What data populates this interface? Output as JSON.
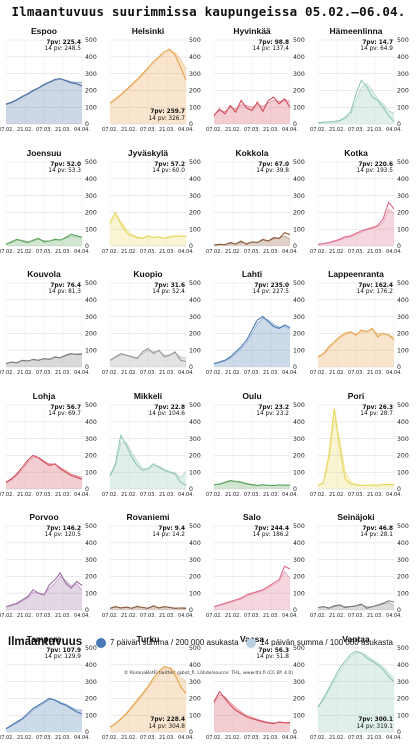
{
  "title": "Ilmaantuvuus suurimmissa kaupungeissa 05.02.–06.04.",
  "legend": {
    "title": "Ilmaantuvuus",
    "item7": "7 päivän summa / 200 000 asukasta",
    "item14": "14 päivän summa / 100 000 asukasta"
  },
  "credit": "© KoronaBotFI twitter: @bot_fi. Lähde/source: THL, www.thl.fi (CC BY 4.0)",
  "chart_data": {
    "type": "area",
    "x_ticks": [
      "07.02.",
      "21.02.",
      "07.03.",
      "21.03.",
      "04.04."
    ],
    "y_ticks": [
      0,
      100,
      200,
      300,
      400,
      500
    ],
    "ylim": [
      0,
      500
    ],
    "grid": true,
    "cities": [
      {
        "name": "Espoo",
        "color": "#4a6fa5",
        "s7": "7pv: 225.4",
        "s14": "14 pv: 248.5",
        "label_pos": "top",
        "v7": [
          118,
          130,
          145,
          165,
          180,
          200,
          215,
          235,
          250,
          265,
          270,
          258,
          245,
          240,
          225
        ],
        "v14": [
          115,
          125,
          140,
          160,
          175,
          195,
          212,
          230,
          245,
          260,
          268,
          262,
          252,
          248,
          248
        ]
      },
      {
        "name": "Helsinki",
        "color": "#e8a24a",
        "s7": "7pv: 259.7",
        "s14": "14 pv: 326.7",
        "label_pos": "bottom",
        "v7": [
          125,
          150,
          175,
          205,
          235,
          265,
          300,
          335,
          370,
          400,
          430,
          445,
          410,
          340,
          260
        ],
        "v14": [
          120,
          142,
          168,
          198,
          228,
          258,
          290,
          325,
          358,
          390,
          418,
          438,
          425,
          385,
          327
        ]
      },
      {
        "name": "Hyvinkää",
        "color": "#d44a5a",
        "s7": "7pv: 98.8",
        "s14": "14 pv: 137.4",
        "label_pos": "top",
        "v7": [
          50,
          90,
          60,
          110,
          70,
          140,
          95,
          80,
          130,
          75,
          140,
          160,
          120,
          150,
          99
        ],
        "v14": [
          55,
          80,
          75,
          100,
          90,
          115,
          110,
          100,
          115,
          105,
          125,
          140,
          135,
          140,
          137
        ]
      },
      {
        "name": "Hämeenlinna",
        "color": "#8fc7b0",
        "s7": "7pv: 14.7",
        "s14": "14 pv: 64.9",
        "label_pos": "top",
        "v7": [
          8,
          10,
          12,
          15,
          20,
          40,
          70,
          180,
          260,
          220,
          160,
          140,
          100,
          50,
          15
        ],
        "v14": [
          8,
          9,
          11,
          13,
          18,
          32,
          55,
          140,
          220,
          240,
          200,
          150,
          120,
          80,
          65
        ]
      },
      {
        "name": "Joensuu",
        "color": "#5aa35a",
        "s7": "7pv: 52.0",
        "s14": "14 pv: 53.3",
        "label_pos": "top",
        "v7": [
          10,
          25,
          40,
          30,
          20,
          35,
          45,
          25,
          30,
          40,
          35,
          50,
          70,
          60,
          52
        ],
        "v14": [
          12,
          20,
          35,
          35,
          25,
          30,
          40,
          32,
          30,
          36,
          38,
          45,
          60,
          58,
          53
        ]
      },
      {
        "name": "Jyväskylä",
        "color": "#e8d65a",
        "s7": "7pv: 57.2",
        "s14": "14 pv: 60.0",
        "label_pos": "top",
        "v7": [
          140,
          200,
          130,
          80,
          60,
          50,
          45,
          60,
          50,
          55,
          45,
          55,
          60,
          58,
          57
        ],
        "v14": [
          130,
          180,
          150,
          100,
          70,
          55,
          48,
          55,
          52,
          55,
          48,
          52,
          58,
          59,
          60
        ]
      },
      {
        "name": "Kokkola",
        "color": "#8b5a3a",
        "s7": "7pv: 67.0",
        "s14": "14 pv: 39.8",
        "label_pos": "top",
        "v7": [
          5,
          10,
          8,
          20,
          12,
          30,
          10,
          25,
          20,
          40,
          30,
          50,
          45,
          80,
          67
        ],
        "v14": [
          5,
          8,
          9,
          15,
          14,
          22,
          16,
          22,
          22,
          32,
          32,
          42,
          45,
          60,
          40
        ]
      },
      {
        "name": "Kotka",
        "color": "#e06a8a",
        "s7": "7pv: 220.6",
        "s14": "14 pv: 193.5",
        "label_pos": "top",
        "v7": [
          10,
          15,
          20,
          30,
          40,
          55,
          60,
          75,
          90,
          100,
          110,
          120,
          160,
          260,
          221
        ],
        "v14": [
          10,
          13,
          18,
          26,
          36,
          48,
          56,
          68,
          82,
          95,
          105,
          115,
          140,
          220,
          194
        ]
      },
      {
        "name": "Kouvola",
        "color": "#777777",
        "s7": "7pv: 76.4",
        "s14": "14 pv: 81.3",
        "label_pos": "top",
        "v7": [
          20,
          30,
          25,
          40,
          35,
          45,
          40,
          50,
          45,
          60,
          55,
          70,
          80,
          75,
          76
        ],
        "v14": [
          22,
          28,
          27,
          38,
          37,
          43,
          42,
          48,
          47,
          56,
          56,
          66,
          76,
          78,
          81
        ]
      },
      {
        "name": "Kuopio",
        "color": "#999999",
        "s7": "7pv: 31.6",
        "s14": "14 pv: 52.4",
        "label_pos": "top",
        "v7": [
          40,
          60,
          80,
          70,
          60,
          50,
          90,
          110,
          80,
          100,
          60,
          70,
          90,
          40,
          32
        ],
        "v14": [
          38,
          55,
          72,
          72,
          64,
          56,
          80,
          100,
          90,
          96,
          72,
          70,
          84,
          60,
          52
        ]
      },
      {
        "name": "Lahti",
        "color": "#4a7ab5",
        "s7": "7pv: 235.0",
        "s14": "14 pv: 227.5",
        "label_pos": "top",
        "v7": [
          20,
          30,
          40,
          60,
          90,
          120,
          160,
          220,
          280,
          300,
          270,
          240,
          230,
          250,
          235
        ],
        "v14": [
          18,
          26,
          36,
          52,
          80,
          110,
          145,
          200,
          258,
          290,
          280,
          255,
          238,
          240,
          228
        ]
      },
      {
        "name": "Lappeenranta",
        "color": "#e8a24a",
        "s7": "7pv: 162.4",
        "s14": "14 pv: 176.2",
        "label_pos": "top",
        "v7": [
          60,
          80,
          120,
          150,
          180,
          200,
          210,
          190,
          220,
          210,
          230,
          180,
          200,
          190,
          162
        ],
        "v14": [
          58,
          75,
          110,
          140,
          170,
          192,
          205,
          196,
          212,
          210,
          222,
          198,
          198,
          192,
          176
        ]
      },
      {
        "name": "Lohja",
        "color": "#d44a5a",
        "s7": "7pv: 56.7",
        "s14": "14 pv: 69.7",
        "label_pos": "top",
        "v7": [
          40,
          60,
          90,
          130,
          170,
          200,
          185,
          160,
          140,
          150,
          120,
          100,
          80,
          70,
          57
        ],
        "v14": [
          38,
          55,
          82,
          118,
          158,
          190,
          188,
          168,
          150,
          148,
          128,
          110,
          90,
          78,
          70
        ]
      },
      {
        "name": "Mikkeli",
        "color": "#8fc7b0",
        "s7": "7pv: 22.8",
        "s14": "14 pv: 104.6",
        "label_pos": "top",
        "v7": [
          80,
          150,
          320,
          260,
          190,
          140,
          110,
          120,
          150,
          130,
          110,
          100,
          90,
          40,
          23
        ],
        "v14": [
          75,
          130,
          280,
          280,
          220,
          165,
          125,
          118,
          138,
          135,
          118,
          105,
          95,
          70,
          105
        ]
      },
      {
        "name": "Oulu",
        "color": "#5aa35a",
        "s7": "7pv: 23.2",
        "s14": "14 pv: 23.2",
        "label_pos": "top",
        "v7": [
          25,
          30,
          40,
          50,
          45,
          40,
          30,
          25,
          20,
          25,
          22,
          20,
          25,
          22,
          23
        ],
        "v14": [
          24,
          28,
          36,
          45,
          46,
          42,
          34,
          28,
          23,
          24,
          23,
          21,
          23,
          23,
          23
        ]
      },
      {
        "name": "Pori",
        "color": "#e8d65a",
        "s7": "7pv: 26.3",
        "s14": "14 pv: 28.7",
        "label_pos": "top",
        "v7": [
          20,
          40,
          200,
          480,
          250,
          60,
          30,
          25,
          20,
          22,
          25,
          20,
          28,
          25,
          26
        ],
        "v14": [
          20,
          35,
          160,
          420,
          300,
          110,
          45,
          30,
          22,
          22,
          24,
          22,
          26,
          27,
          29
        ]
      },
      {
        "name": "Porvoo",
        "color": "#9b6aa3",
        "s7": "7pv: 146.2",
        "s14": "14 pv: 120.5",
        "label_pos": "top",
        "v7": [
          20,
          30,
          40,
          60,
          80,
          120,
          100,
          90,
          150,
          180,
          220,
          160,
          130,
          170,
          146
        ],
        "v14": [
          18,
          26,
          36,
          52,
          72,
          105,
          100,
          92,
          130,
          160,
          200,
          175,
          145,
          155,
          121
        ]
      },
      {
        "name": "Rovaniemi",
        "color": "#8b5a3a",
        "s7": "7pv: 9.4",
        "s14": "14 pv: 14.2",
        "label_pos": "top",
        "v7": [
          10,
          20,
          12,
          18,
          10,
          22,
          15,
          10,
          25,
          12,
          20,
          15,
          10,
          12,
          9
        ],
        "v14": [
          11,
          17,
          14,
          16,
          12,
          19,
          16,
          12,
          21,
          15,
          18,
          16,
          12,
          13,
          14
        ]
      },
      {
        "name": "Salo",
        "color": "#e06a8a",
        "s7": "7pv: 244.4",
        "s14": "14 pv: 186.2",
        "label_pos": "top",
        "v7": [
          20,
          30,
          40,
          50,
          60,
          70,
          90,
          100,
          110,
          120,
          140,
          160,
          180,
          260,
          244
        ],
        "v14": [
          18,
          26,
          35,
          45,
          55,
          65,
          82,
          95,
          105,
          115,
          132,
          150,
          170,
          230,
          186
        ]
      },
      {
        "name": "Seinäjoki",
        "color": "#777777",
        "s7": "7pv: 46.8",
        "s14": "14 pv: 28.1",
        "label_pos": "top",
        "v7": [
          15,
          20,
          10,
          25,
          30,
          15,
          20,
          25,
          35,
          10,
          20,
          30,
          40,
          55,
          47
        ],
        "v14": [
          14,
          18,
          13,
          20,
          26,
          20,
          20,
          23,
          30,
          20,
          20,
          26,
          34,
          44,
          28
        ]
      },
      {
        "name": "Tampere",
        "color": "#4a7ab5",
        "s7": "7pv: 107.9",
        "s14": "14 pv: 129.9",
        "label_pos": "top",
        "v7": [
          20,
          40,
          60,
          80,
          110,
          140,
          160,
          180,
          200,
          190,
          170,
          160,
          140,
          120,
          108
        ],
        "v14": [
          18,
          36,
          55,
          75,
          100,
          130,
          152,
          172,
          192,
          192,
          178,
          165,
          148,
          132,
          130
        ]
      },
      {
        "name": "Turku",
        "color": "#e8a24a",
        "s7": "7pv: 228.4",
        "s14": "14 pv: 304.8",
        "label_pos": "bottom",
        "v7": [
          30,
          50,
          80,
          110,
          150,
          190,
          230,
          270,
          320,
          360,
          390,
          380,
          340,
          270,
          228
        ],
        "v14": [
          28,
          46,
          74,
          104,
          142,
          180,
          220,
          260,
          305,
          345,
          380,
          385,
          360,
          320,
          305
        ]
      },
      {
        "name": "Vaasa",
        "color": "#d44a5a",
        "s7": "7pv: 56.3",
        "s14": "14 pv: 51.8",
        "label_pos": "top",
        "v7": [
          180,
          240,
          200,
          160,
          130,
          110,
          90,
          80,
          70,
          60,
          55,
          50,
          60,
          55,
          56
        ],
        "v14": [
          170,
          220,
          210,
          175,
          145,
          120,
          100,
          88,
          76,
          66,
          58,
          54,
          56,
          56,
          52
        ]
      },
      {
        "name": "Vantaa",
        "color": "#8fc7b0",
        "s7": "7pv: 300.1",
        "s14": "14 pv: 319.1",
        "label_pos": "bottom",
        "v7": [
          150,
          200,
          260,
          320,
          380,
          420,
          460,
          480,
          470,
          440,
          420,
          400,
          370,
          330,
          300
        ],
        "v14": [
          145,
          190,
          245,
          305,
          360,
          405,
          445,
          470,
          472,
          455,
          432,
          412,
          388,
          352,
          319
        ]
      }
    ]
  }
}
